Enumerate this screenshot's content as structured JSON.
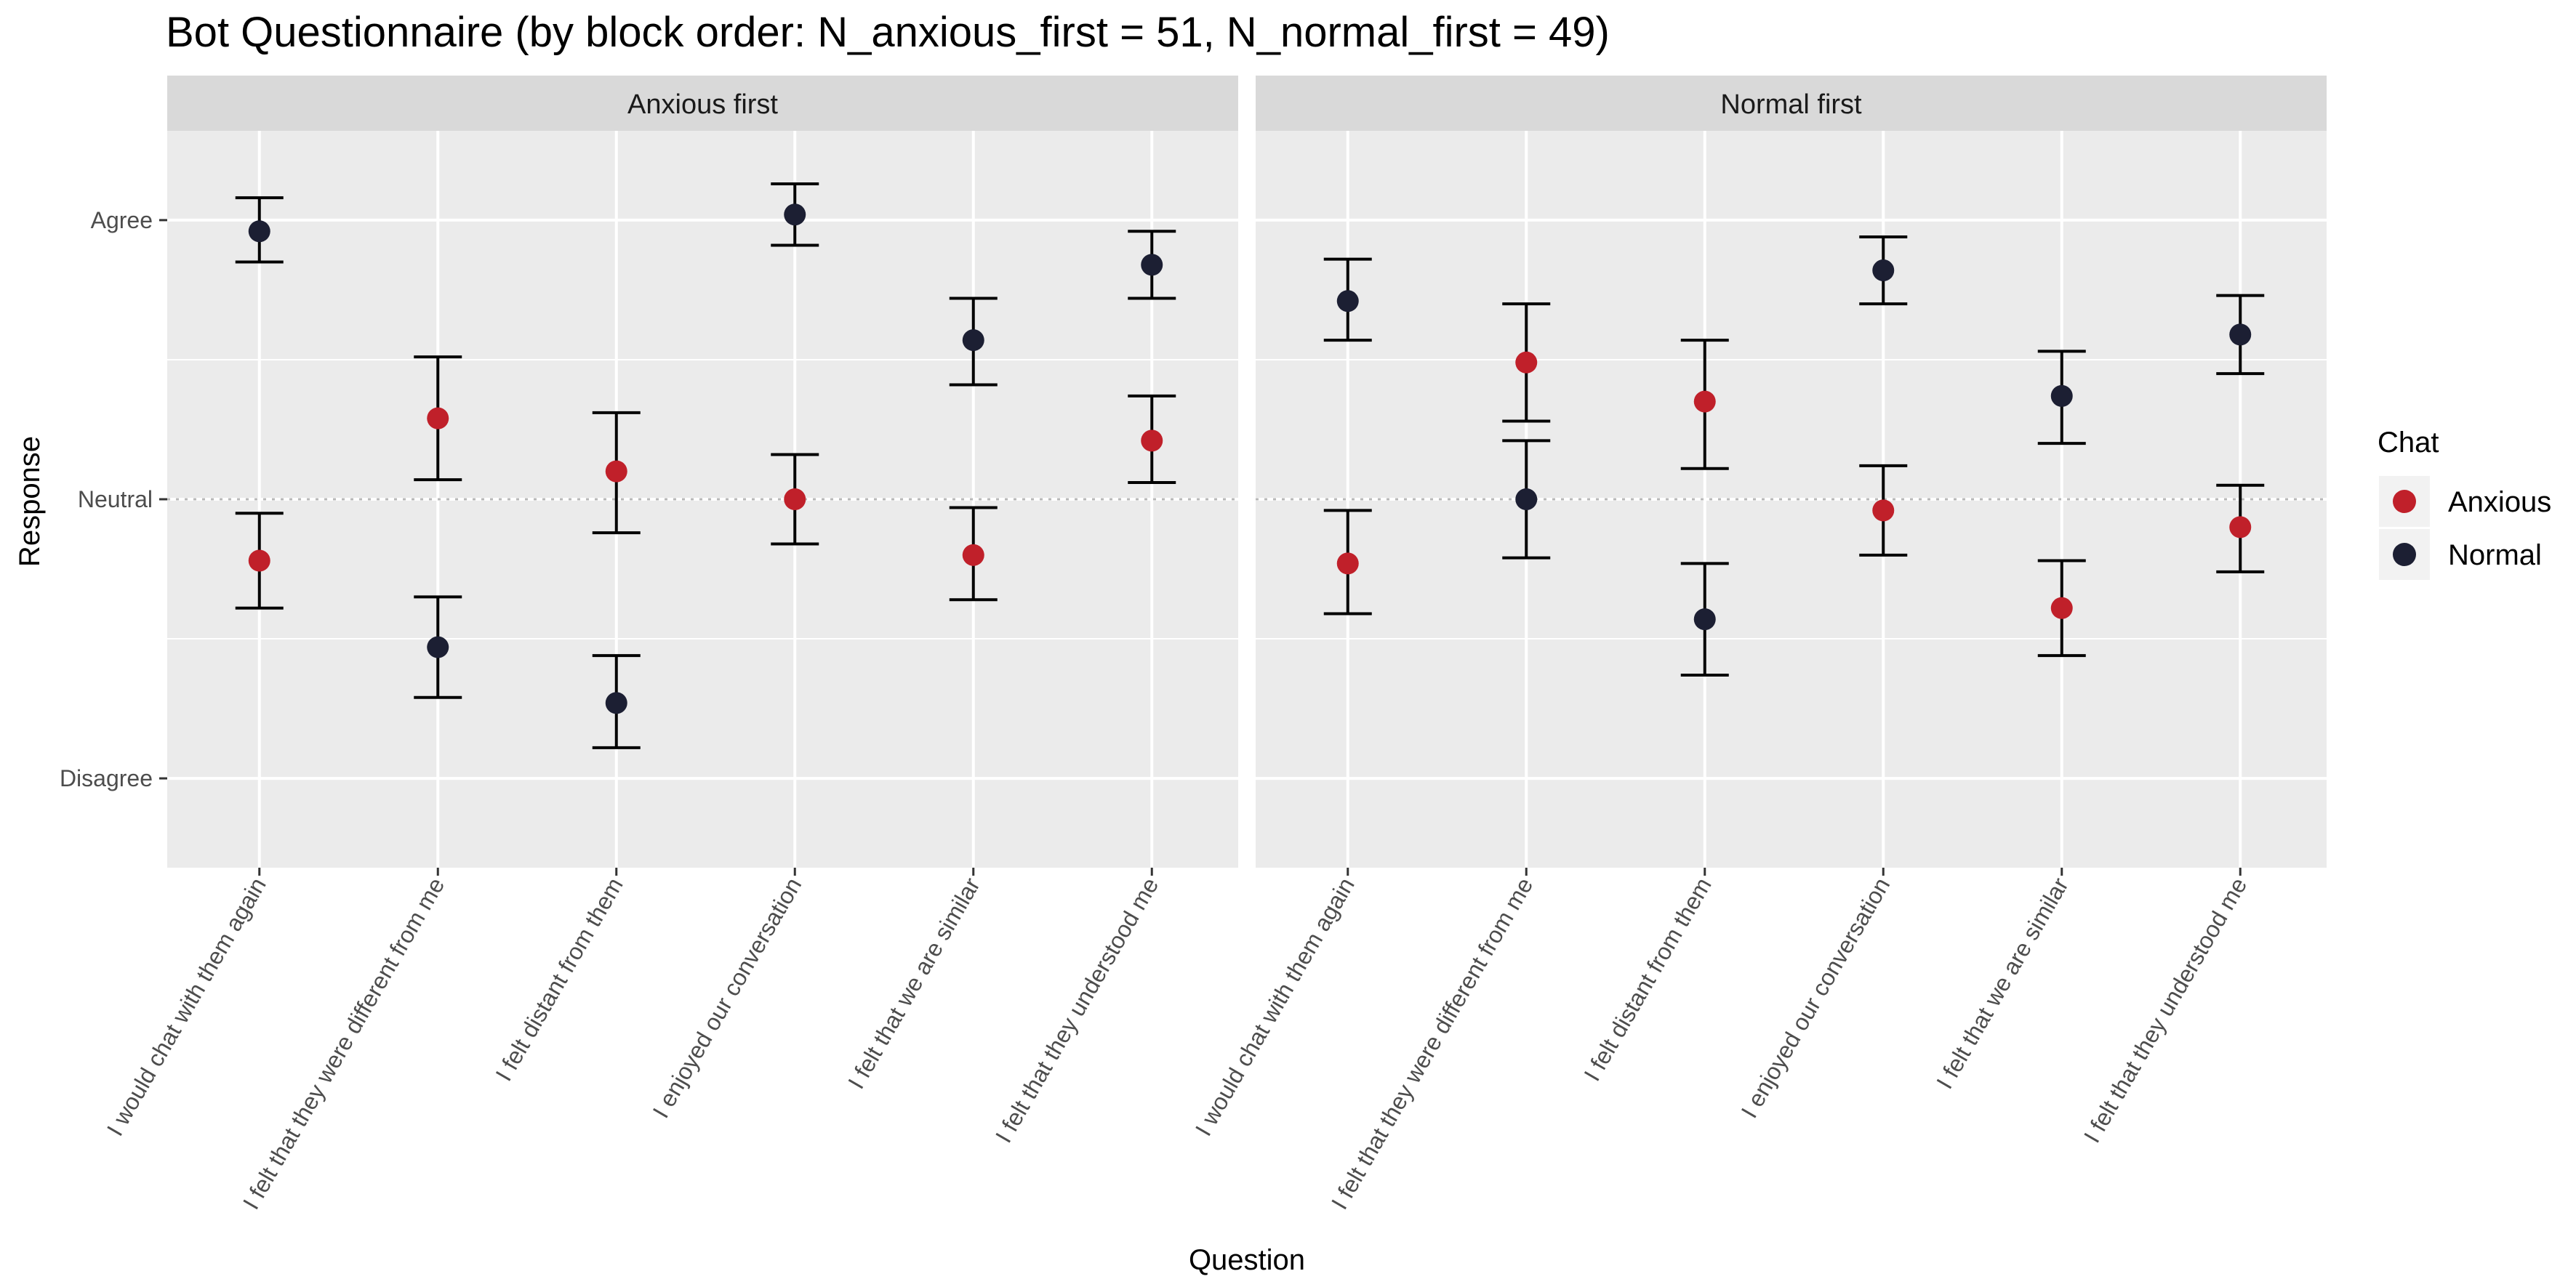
{
  "chart_data": {
    "type": "scatter",
    "title": "Bot Questionnaire (by block order: N_anxious_first = 51, N_normal_first = 49)",
    "xlabel": "Question",
    "ylabel": "Response",
    "y_tick_labels": [
      "Disagree",
      "Neutral",
      "Agree"
    ],
    "y_tick_values": [
      -1,
      0,
      1
    ],
    "ylim": [
      -1.32,
      1.32
    ],
    "reference_line": {
      "y": 0,
      "style": "dotted"
    },
    "categories": [
      "I would chat with them again",
      "I felt that they were different from me",
      "I felt distant from them",
      "I enjoyed our conversation",
      "I felt that we are similar",
      "I felt that they understood me"
    ],
    "legend": {
      "title": "Chat",
      "position": "right"
    },
    "series_colors": {
      "Anxious": "#C0202A",
      "Normal": "#1C1F33"
    },
    "facets": [
      {
        "label": "Anxious first",
        "series": [
          {
            "name": "Anxious",
            "values": [
              -0.22,
              0.29,
              0.1,
              0.0,
              -0.2,
              0.21
            ],
            "lower": [
              -0.39,
              0.07,
              -0.12,
              -0.16,
              -0.36,
              0.06
            ],
            "upper": [
              -0.05,
              0.51,
              0.31,
              0.16,
              -0.03,
              0.37
            ]
          },
          {
            "name": "Normal",
            "values": [
              0.96,
              -0.53,
              -0.73,
              1.02,
              0.57,
              0.84
            ],
            "lower": [
              0.85,
              -0.71,
              -0.89,
              0.91,
              0.41,
              0.72
            ],
            "upper": [
              1.08,
              -0.35,
              -0.56,
              1.13,
              0.72,
              0.96
            ]
          }
        ]
      },
      {
        "label": "Normal first",
        "series": [
          {
            "name": "Anxious",
            "values": [
              -0.23,
              0.49,
              0.35,
              -0.04,
              -0.39,
              -0.1
            ],
            "lower": [
              -0.41,
              0.28,
              0.11,
              -0.2,
              -0.56,
              -0.26
            ],
            "upper": [
              -0.04,
              0.7,
              0.57,
              0.12,
              -0.22,
              0.05
            ]
          },
          {
            "name": "Normal",
            "values": [
              0.71,
              0.0,
              -0.43,
              0.82,
              0.37,
              0.59
            ],
            "lower": [
              0.57,
              -0.21,
              -0.63,
              0.7,
              0.2,
              0.45
            ],
            "upper": [
              0.86,
              0.21,
              -0.23,
              0.94,
              0.53,
              0.73
            ]
          }
        ]
      }
    ]
  }
}
